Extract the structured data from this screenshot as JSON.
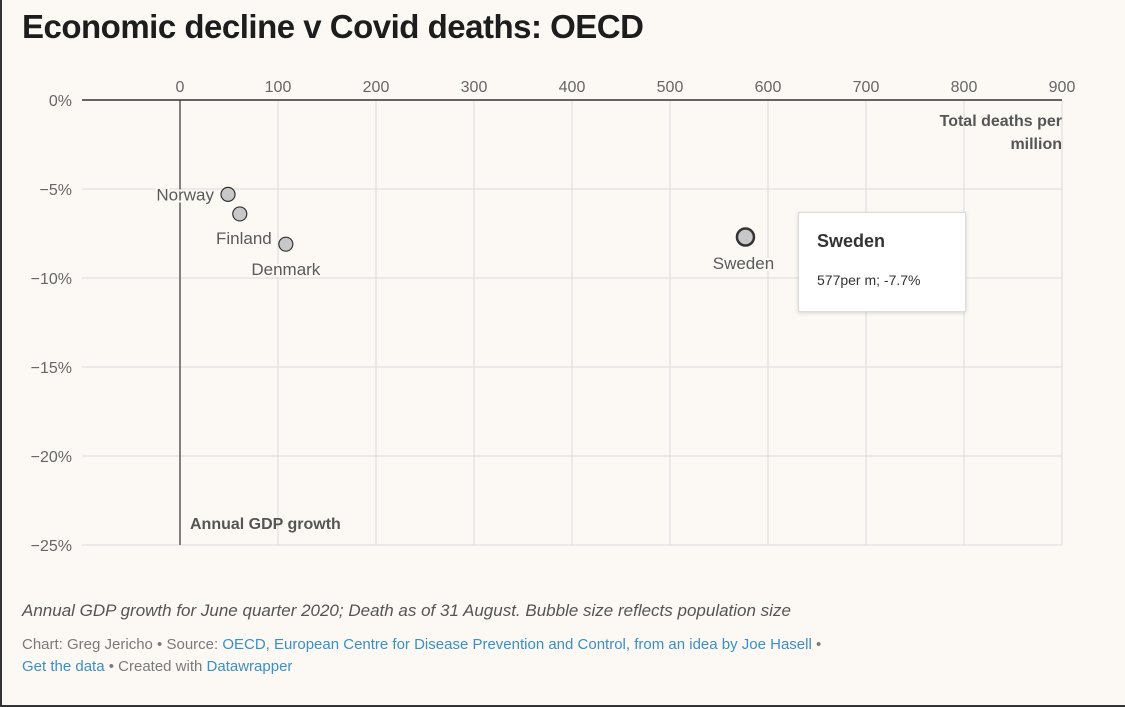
{
  "title": "Economic decline v Covid deaths: OECD",
  "chart_data": {
    "type": "scatter",
    "title": "Economic decline v Covid deaths: OECD",
    "xlabel": "Total deaths per million",
    "ylabel": "Annual GDP growth",
    "xlim": [
      0,
      900
    ],
    "ylim": [
      -25,
      0
    ],
    "x_ticks": [
      0,
      100,
      200,
      300,
      400,
      500,
      600,
      700,
      800,
      900
    ],
    "y_ticks": [
      0,
      -5,
      -10,
      -15,
      -20,
      -25
    ],
    "y_tick_labels": [
      "0%",
      "−5%",
      "−10%",
      "−15%",
      "−20%",
      "−25%"
    ],
    "grid": true,
    "points": [
      {
        "label": "Norway",
        "x": 49,
        "y": -5.3
      },
      {
        "label": "Finland",
        "x": 61,
        "y": -6.4
      },
      {
        "label": "Denmark",
        "x": 108,
        "y": -8.1
      },
      {
        "label": "Sweden",
        "x": 577,
        "y": -7.7
      }
    ],
    "tooltip": {
      "title": "Sweden",
      "text": "577per m; -7.7%"
    }
  },
  "notes": "Annual GDP growth for June quarter 2020; Death as of 31 August. Bubble size reflects population size",
  "credits": {
    "chart_by": "Chart: Greg Jericho",
    "sep1": " • Source: ",
    "source": "OECD, European Centre for Disease Prevention and Control, from an idea by Joe Hasell",
    "sep2": " •",
    "get_data": "Get the data",
    "sep3": " • Created with ",
    "tool": "Datawrapper"
  },
  "colors": {
    "grid": "#dcdcdc",
    "axis": "#333333",
    "point_fill": "#c8c8c8",
    "point_stroke": "#333333",
    "label": "#5a5a5a",
    "link": "#3b8fc4"
  }
}
